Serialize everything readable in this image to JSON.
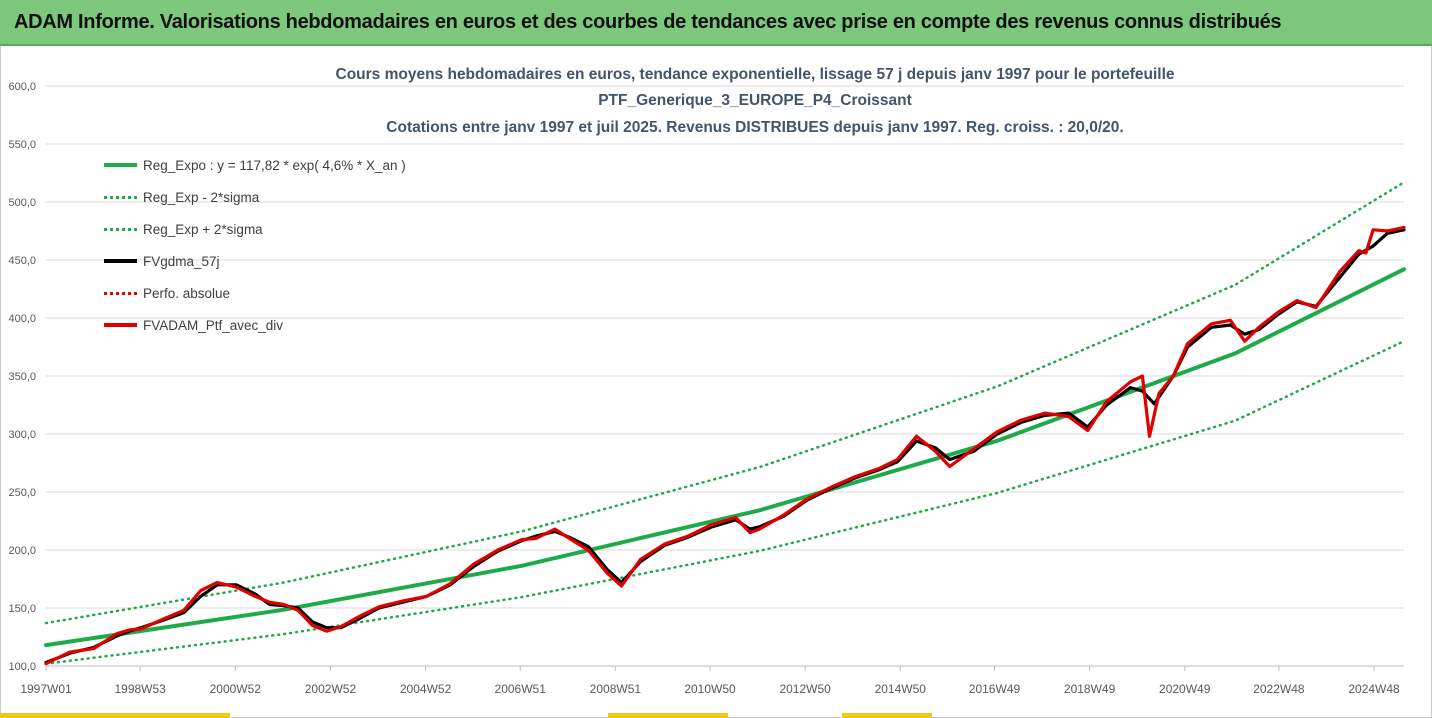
{
  "header": {
    "title": "ADAM Informe. Valorisations hebdomadaires en euros et des courbes de tendances avec prise en compte des revenus connus distribués"
  },
  "chart_data": {
    "type": "line",
    "title_lines": [
      "Cours moyens hebdomadaires  en euros, tendance exponentielle, lissage 57 j depuis janv 1997 pour le portefeuille",
      "PTF_Generique_3_EUROPE_P4_Croissant",
      "Cotations  entre janv 1997 et juil 2025. Revenus DISTRIBUES depuis janv 1997. Reg. croiss. : 20,0/20."
    ],
    "xlabel": "",
    "ylabel": "",
    "ylim": [
      100,
      600
    ],
    "y_ticks": [
      "100,0",
      "150,0",
      "200,0",
      "250,0",
      "300,0",
      "350,0",
      "400,0",
      "450,0",
      "500,0",
      "550,0",
      "600,0"
    ],
    "x_range": [
      1997.0,
      2025.55
    ],
    "x_ticks": [
      {
        "year": 1997.0,
        "label": "1997W01"
      },
      {
        "year": 1998.98,
        "label": "1998W53"
      },
      {
        "year": 2000.98,
        "label": "2000W52"
      },
      {
        "year": 2002.98,
        "label": "2002W52"
      },
      {
        "year": 2004.98,
        "label": "2004W52"
      },
      {
        "year": 2006.97,
        "label": "2006W51"
      },
      {
        "year": 2008.97,
        "label": "2008W51"
      },
      {
        "year": 2010.96,
        "label": "2010W50"
      },
      {
        "year": 2012.96,
        "label": "2012W50"
      },
      {
        "year": 2014.96,
        "label": "2014W50"
      },
      {
        "year": 2016.94,
        "label": "2016W49"
      },
      {
        "year": 2018.94,
        "label": "2018W49"
      },
      {
        "year": 2020.94,
        "label": "2020W49"
      },
      {
        "year": 2022.92,
        "label": "2022W48"
      },
      {
        "year": 2024.92,
        "label": "2024W48"
      }
    ],
    "grid": "horizontal",
    "legend_position": "top-left",
    "series": [
      {
        "name": "Reg_Expo : y = 117,82 * exp( 4,6% *  X_an )",
        "style": "solid-thick",
        "color": "#1faa4a",
        "x": [
          1997.0,
          2002.0,
          2007.0,
          2012.0,
          2017.0,
          2022.0,
          2025.55
        ],
        "values": [
          118.0,
          148.5,
          186.4,
          234.2,
          294.1,
          369.5,
          442.0
        ]
      },
      {
        "name": "Reg_Exp - 2*sigma",
        "style": "dotted",
        "color": "#1faa4a",
        "x": [
          1997.0,
          2002.0,
          2007.0,
          2012.0,
          2017.0,
          2022.0,
          2025.55
        ],
        "values": [
          102.0,
          127.5,
          159.4,
          199.2,
          249.2,
          311.5,
          380.0
        ]
      },
      {
        "name": "Reg_Exp + 2*sigma",
        "style": "dotted",
        "color": "#1faa4a",
        "x": [
          1997.0,
          2002.0,
          2007.0,
          2012.0,
          2017.0,
          2022.0,
          2025.55
        ],
        "values": [
          137.0,
          172.0,
          216.0,
          271.5,
          341.0,
          428.5,
          517.0
        ]
      },
      {
        "name": "FVgdma_57j",
        "style": "solid-thick",
        "color": "#000000",
        "x": [
          1997.0,
          1997.5,
          1998.0,
          1998.5,
          1998.75,
          1999.0,
          1999.5,
          1999.9,
          2000.25,
          2000.6,
          2001.0,
          2001.4,
          2001.7,
          2002.0,
          2002.3,
          2002.6,
          2002.9,
          2003.2,
          2003.6,
          2004.0,
          2004.5,
          2005.0,
          2005.5,
          2006.0,
          2006.5,
          2007.0,
          2007.3,
          2007.7,
          2008.0,
          2008.4,
          2008.8,
          2009.1,
          2009.5,
          2010.0,
          2010.5,
          2011.0,
          2011.5,
          2011.8,
          2012.0,
          2012.5,
          2013.0,
          2013.5,
          2014.0,
          2014.5,
          2014.9,
          2015.3,
          2015.7,
          2016.0,
          2016.5,
          2017.0,
          2017.5,
          2018.0,
          2018.5,
          2018.9,
          2019.3,
          2019.8,
          2020.05,
          2020.3,
          2020.7,
          2021.0,
          2021.5,
          2021.9,
          2022.2,
          2022.5,
          2022.9,
          2023.3,
          2023.7,
          2024.2,
          2024.6,
          2024.9,
          2025.2,
          2025.55
        ],
        "values": [
          103.0,
          111.0,
          116.0,
          126.0,
          130.0,
          133.0,
          140.0,
          146.0,
          160.0,
          170.0,
          170.0,
          162.0,
          153.0,
          152.0,
          150.0,
          138.0,
          133.0,
          133.0,
          141.0,
          150.0,
          155.0,
          160.0,
          170.0,
          186.0,
          199.0,
          208.0,
          212.0,
          216.0,
          211.0,
          203.0,
          183.0,
          172.0,
          190.0,
          204.0,
          211.0,
          220.0,
          226.0,
          218.0,
          220.0,
          229.0,
          243.0,
          253.0,
          262.0,
          269.0,
          276.0,
          294.0,
          288.0,
          278.0,
          285.0,
          300.0,
          310.0,
          316.0,
          318.0,
          306.0,
          325.0,
          340.0,
          337.0,
          326.0,
          350.0,
          375.0,
          392.0,
          394.0,
          386.0,
          390.0,
          403.0,
          414.0,
          410.0,
          435.0,
          455.0,
          462.0,
          473.0,
          476.0
        ]
      },
      {
        "name": "Perfo. absolue",
        "style": "dotted",
        "color": "#e00000",
        "x": [
          1997.0,
          1997.5,
          1998.0,
          1998.5,
          1998.75,
          1999.0,
          1999.5,
          1999.9,
          2000.25,
          2000.6,
          2001.0,
          2001.4,
          2001.7,
          2002.0,
          2002.3,
          2002.6,
          2002.9,
          2003.2,
          2003.6,
          2004.0,
          2004.5,
          2005.0,
          2005.5,
          2006.0,
          2006.5,
          2007.0,
          2007.3,
          2007.7,
          2008.0,
          2008.4,
          2008.8,
          2009.1,
          2009.5,
          2010.0,
          2010.5,
          2011.0,
          2011.5,
          2011.8,
          2012.0,
          2012.5,
          2013.0,
          2013.5,
          2014.0,
          2014.5,
          2014.9,
          2015.3,
          2015.7,
          2016.0,
          2016.5,
          2017.0,
          2017.5,
          2018.0,
          2018.5,
          2018.9,
          2019.3,
          2019.8,
          2020.05,
          2020.2,
          2020.4,
          2020.7,
          2021.0,
          2021.5,
          2021.9,
          2022.2,
          2022.5,
          2022.9,
          2023.3,
          2023.7,
          2024.2,
          2024.6,
          2024.75,
          2024.9,
          2025.2,
          2025.55
        ],
        "values": [
          102.0,
          112.0,
          115.0,
          128.0,
          131.0,
          132.0,
          141.0,
          148.0,
          165.0,
          172.0,
          168.0,
          160.0,
          155.0,
          153.0,
          148.0,
          135.0,
          130.0,
          134.0,
          143.0,
          151.0,
          156.0,
          160.0,
          171.0,
          188.0,
          200.0,
          209.0,
          210.0,
          218.0,
          210.0,
          200.0,
          180.0,
          169.0,
          192.0,
          205.0,
          212.0,
          222.0,
          228.0,
          215.0,
          218.0,
          230.0,
          244.0,
          254.0,
          263.0,
          270.0,
          278.0,
          298.0,
          285.0,
          272.0,
          287.0,
          302.0,
          312.0,
          318.0,
          315.0,
          303.0,
          328.0,
          345.0,
          350.0,
          298.0,
          335.0,
          350.0,
          378.0,
          395.0,
          398.0,
          380.0,
          392.0,
          405.0,
          415.0,
          409.0,
          440.0,
          458.0,
          456.0,
          476.0,
          475.0,
          478.0
        ]
      },
      {
        "name": "FVADAM_Ptf_avec_div",
        "style": "solid-thick",
        "color": "#e00000",
        "x": [
          1997.0,
          1997.5,
          1998.0,
          1998.5,
          1998.75,
          1999.0,
          1999.5,
          1999.9,
          2000.25,
          2000.6,
          2001.0,
          2001.4,
          2001.7,
          2002.0,
          2002.3,
          2002.6,
          2002.9,
          2003.2,
          2003.6,
          2004.0,
          2004.5,
          2005.0,
          2005.5,
          2006.0,
          2006.5,
          2007.0,
          2007.3,
          2007.7,
          2008.0,
          2008.4,
          2008.8,
          2009.1,
          2009.5,
          2010.0,
          2010.5,
          2011.0,
          2011.5,
          2011.8,
          2012.0,
          2012.5,
          2013.0,
          2013.5,
          2014.0,
          2014.5,
          2014.9,
          2015.3,
          2015.7,
          2016.0,
          2016.5,
          2017.0,
          2017.5,
          2018.0,
          2018.5,
          2018.9,
          2019.3,
          2019.8,
          2020.05,
          2020.2,
          2020.4,
          2020.7,
          2021.0,
          2021.5,
          2021.9,
          2022.2,
          2022.5,
          2022.9,
          2023.3,
          2023.7,
          2024.2,
          2024.6,
          2024.75,
          2024.9,
          2025.2,
          2025.55
        ],
        "values": [
          102.0,
          112.0,
          115.0,
          128.0,
          131.0,
          132.0,
          141.0,
          148.0,
          165.0,
          172.0,
          168.0,
          160.0,
          155.0,
          153.0,
          148.0,
          135.0,
          130.0,
          134.0,
          143.0,
          151.0,
          156.0,
          160.0,
          171.0,
          188.0,
          200.0,
          209.0,
          210.0,
          218.0,
          210.0,
          200.0,
          180.0,
          169.0,
          192.0,
          205.0,
          212.0,
          222.0,
          228.0,
          215.0,
          218.0,
          230.0,
          244.0,
          254.0,
          263.0,
          270.0,
          278.0,
          298.0,
          285.0,
          272.0,
          287.0,
          302.0,
          312.0,
          318.0,
          315.0,
          303.0,
          328.0,
          345.0,
          350.0,
          298.0,
          335.0,
          350.0,
          378.0,
          395.0,
          398.0,
          380.0,
          392.0,
          405.0,
          415.0,
          409.0,
          440.0,
          458.0,
          456.0,
          476.0,
          475.0,
          478.0
        ]
      }
    ]
  },
  "theme": {
    "banner_bg": "#7ec87e",
    "title_color": "#44546a",
    "axis_text_color": "#595959",
    "grid_color": "#d9d9d9",
    "accent_strip": "#f5c518"
  }
}
